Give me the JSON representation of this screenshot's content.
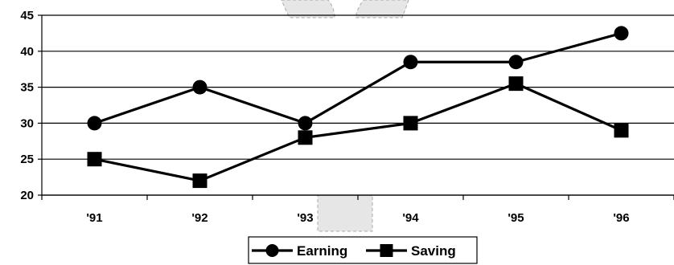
{
  "chart_data": {
    "type": "line",
    "title": "",
    "xlabel": "",
    "ylabel": "",
    "categories": [
      "'91",
      "'92",
      "'93",
      "'94",
      "'95",
      "'96"
    ],
    "ylim": [
      20,
      45
    ],
    "yticks": [
      20,
      25,
      30,
      35,
      40,
      45
    ],
    "grid": true,
    "legend_position": "bottom",
    "series": [
      {
        "name": "Earning",
        "marker": "circle",
        "values": [
          30,
          35,
          30,
          38.5,
          38.5,
          42.5
        ]
      },
      {
        "name": "Saving",
        "marker": "square",
        "values": [
          25,
          22,
          28,
          30,
          35.5,
          29
        ]
      }
    ],
    "colors": {
      "line": "#000000",
      "grid": "#000000",
      "background": "#ffffff"
    }
  }
}
